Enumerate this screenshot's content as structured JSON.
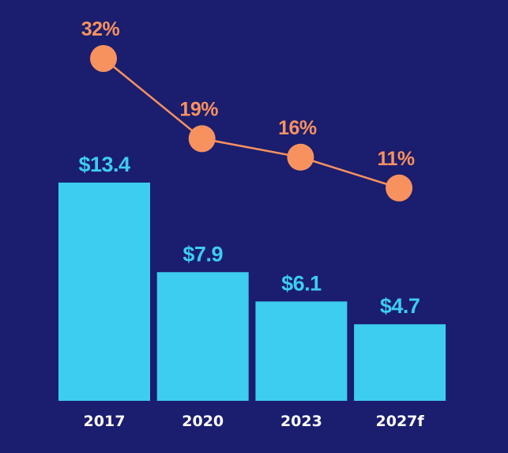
{
  "colors": {
    "background": "#1b1d6e",
    "bar": "#3ccdf0",
    "line": "#f7925f"
  },
  "chart_data": {
    "type": "bar",
    "categories": [
      "2017",
      "2020",
      "2023",
      "2027f"
    ],
    "series": [
      {
        "type": "bar",
        "values": [
          13.4,
          7.9,
          6.1,
          4.7
        ],
        "labels": [
          "$13.4",
          "$7.9",
          "$6.1",
          "$4.7"
        ]
      },
      {
        "type": "line",
        "values": [
          32,
          19,
          16,
          11
        ],
        "labels": [
          "32%",
          "19%",
          "16%",
          "11%"
        ]
      }
    ],
    "title": "",
    "xlabel": "",
    "ylabel": "",
    "grid": false,
    "legend": "none"
  }
}
